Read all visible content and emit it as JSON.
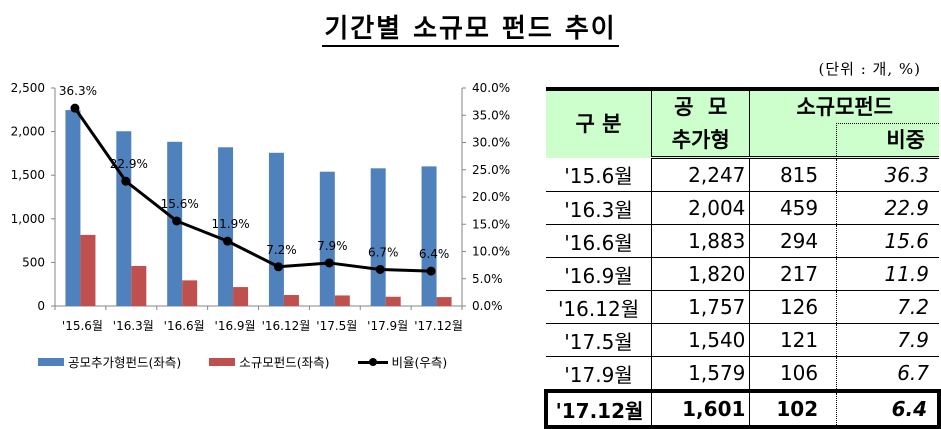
{
  "title": "기간별 소규모 펀드 추이",
  "unit_note": "(단위 : 개, %)",
  "colors": {
    "public_funds": "#4f81bd",
    "small_funds": "#c0504d",
    "ratio_line": "#000000",
    "table_header_bg": "#ccffcc"
  },
  "legend": {
    "public_funds": "공모추가형펀드(좌측)",
    "small_funds": "소규모펀드(좌측)",
    "ratio": "비율(우측)"
  },
  "table": {
    "headers": {
      "category": "구 분",
      "public_line1": "공  모",
      "public_line2": "추가형",
      "small": "소규모펀드",
      "ratio": "비중"
    },
    "rows": [
      {
        "period": "'15.6월",
        "public": "2,247",
        "small": "815",
        "ratio": "36.3"
      },
      {
        "period": "'16.3월",
        "public": "2,004",
        "small": "459",
        "ratio": "22.9"
      },
      {
        "period": "'16.6월",
        "public": "1,883",
        "small": "294",
        "ratio": "15.6"
      },
      {
        "period": "'16.9월",
        "public": "1,820",
        "small": "217",
        "ratio": "11.9"
      },
      {
        "period": "'16.12월",
        "public": "1,757",
        "small": "126",
        "ratio": "7.2"
      },
      {
        "period": "'17.5월",
        "public": "1,540",
        "small": "121",
        "ratio": "7.9"
      },
      {
        "period": "'17.9월",
        "public": "1,579",
        "small": "106",
        "ratio": "6.7"
      },
      {
        "period": "'17.12월",
        "public": "1,601",
        "small": "102",
        "ratio": "6.4"
      }
    ]
  },
  "chart_data": {
    "type": "bar",
    "title": "기간별 소규모 펀드 추이",
    "categories": [
      "'15.6월",
      "'16.3월",
      "'16.6월",
      "'16.9월",
      "'16.12월",
      "'17.5월",
      "'17.9월",
      "'17.12월"
    ],
    "series": [
      {
        "name": "공모추가형펀드(좌측)",
        "type": "bar",
        "axis": "left",
        "values": [
          2247,
          2004,
          1883,
          1820,
          1757,
          1540,
          1579,
          1601
        ]
      },
      {
        "name": "소규모펀드(좌측)",
        "type": "bar",
        "axis": "left",
        "values": [
          815,
          459,
          294,
          217,
          126,
          121,
          106,
          102
        ]
      },
      {
        "name": "비율(우측)",
        "type": "line",
        "axis": "right",
        "values": [
          36.3,
          22.9,
          15.6,
          11.9,
          7.2,
          7.9,
          6.7,
          6.4
        ],
        "labels": [
          "36.3%",
          "22.9%",
          "15.6%",
          "11.9%",
          "7.2%",
          "7.9%",
          "6.7%",
          "6.4%"
        ]
      }
    ],
    "left_axis": {
      "ylim": [
        0,
        2500
      ],
      "ticks": [
        "0",
        "500",
        "1,000",
        "1,500",
        "2,000",
        "2,500"
      ]
    },
    "right_axis": {
      "ylim": [
        0,
        40
      ],
      "ticks": [
        "0.0%",
        "5.0%",
        "10.0%",
        "15.0%",
        "20.0%",
        "25.0%",
        "30.0%",
        "35.0%",
        "40.0%"
      ]
    },
    "xlabel": "",
    "ylabel": "",
    "grid": false,
    "legend_position": "bottom"
  }
}
